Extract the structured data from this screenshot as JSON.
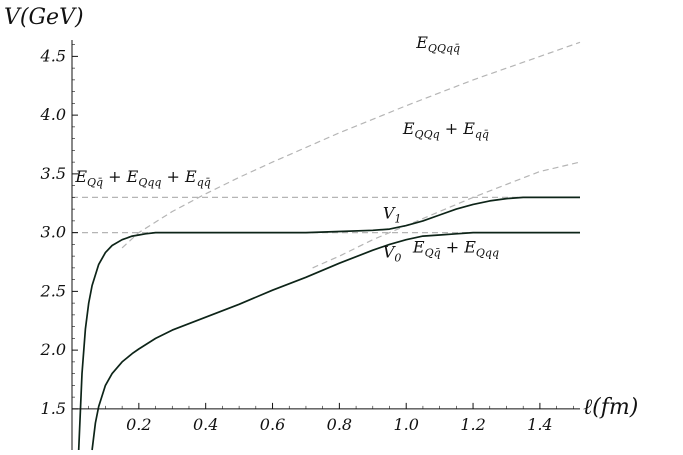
{
  "chart_data": {
    "type": "line",
    "xlabel": "ℓ(fm)",
    "ylabel": "V(GeV)",
    "xlim": [
      0.0,
      1.52
    ],
    "ylim": [
      1.15,
      4.75
    ],
    "x_ticks": [
      {
        "value": 0.2,
        "label": "0.2"
      },
      {
        "value": 0.4,
        "label": "0.4"
      },
      {
        "value": 0.6,
        "label": "0.6"
      },
      {
        "value": 0.8,
        "label": "0.8"
      },
      {
        "value": 1.0,
        "label": "1.0"
      },
      {
        "value": 1.2,
        "label": "1.2"
      },
      {
        "value": 1.4,
        "label": "1.4"
      }
    ],
    "y_ticks": [
      {
        "value": 1.5,
        "label": "1.5"
      },
      {
        "value": 2.0,
        "label": "2.0"
      },
      {
        "value": 2.5,
        "label": "2.5"
      },
      {
        "value": 3.0,
        "label": "3.0"
      },
      {
        "value": 3.5,
        "label": "3.5"
      },
      {
        "value": 4.0,
        "label": "4.0"
      },
      {
        "value": 4.5,
        "label": "4.5"
      }
    ],
    "grid": false,
    "series": [
      {
        "name": "V1",
        "style": "solid",
        "color": "#0d2418",
        "x": [
          0.02,
          0.03,
          0.04,
          0.05,
          0.06,
          0.08,
          0.1,
          0.12,
          0.15,
          0.18,
          0.2,
          0.22,
          0.25,
          0.3,
          0.4,
          0.5,
          0.6,
          0.7,
          0.8,
          0.9,
          0.95,
          1.0,
          1.05,
          1.1,
          1.15,
          1.2,
          1.25,
          1.3,
          1.35,
          1.4,
          1.45,
          1.52
        ],
        "y": [
          1.15,
          1.8,
          2.18,
          2.4,
          2.55,
          2.73,
          2.83,
          2.89,
          2.94,
          2.97,
          2.98,
          2.99,
          3.0,
          3.0,
          3.0,
          3.0,
          3.0,
          3.0,
          3.01,
          3.02,
          3.03,
          3.06,
          3.1,
          3.15,
          3.2,
          3.24,
          3.27,
          3.29,
          3.3,
          3.3,
          3.3,
          3.3
        ]
      },
      {
        "name": "V0",
        "style": "solid",
        "color": "#0d2418",
        "x": [
          0.06,
          0.07,
          0.08,
          0.1,
          0.12,
          0.15,
          0.18,
          0.2,
          0.25,
          0.3,
          0.4,
          0.5,
          0.6,
          0.7,
          0.8,
          0.9,
          0.95,
          1.0,
          1.05,
          1.1,
          1.15,
          1.2,
          1.3,
          1.4,
          1.52
        ],
        "y": [
          1.15,
          1.38,
          1.52,
          1.7,
          1.8,
          1.9,
          1.97,
          2.01,
          2.1,
          2.17,
          2.28,
          2.39,
          2.51,
          2.62,
          2.74,
          2.85,
          2.9,
          2.94,
          2.97,
          2.98,
          2.99,
          3.0,
          3.0,
          3.0,
          3.0
        ]
      },
      {
        "name": "E_QQqq̄",
        "style": "dashed",
        "color": "#b5b5b5",
        "x": [
          0.15,
          0.2,
          0.3,
          0.4,
          0.5,
          0.6,
          0.8,
          1.0,
          1.2,
          1.4,
          1.52
        ],
        "y": [
          2.87,
          3.0,
          3.18,
          3.33,
          3.47,
          3.6,
          3.85,
          4.08,
          4.3,
          4.5,
          4.62
        ]
      },
      {
        "name": "E_QQq + E_qq̄",
        "style": "dashed",
        "color": "#b5b5b5",
        "x": [
          0.72,
          0.8,
          0.9,
          1.0,
          1.1,
          1.2,
          1.3,
          1.4,
          1.52
        ],
        "y": [
          2.7,
          2.8,
          2.94,
          3.06,
          3.18,
          3.3,
          3.41,
          3.52,
          3.6
        ]
      },
      {
        "name": "E_Qq̄ + E_Qqq + E_qq̄",
        "style": "dashed-hline",
        "color": "#b5b5b5",
        "y": 3.3
      },
      {
        "name": "E_Qq̄ + E_Qqq",
        "style": "dashed-hline",
        "color": "#b5b5b5",
        "y": 3.0
      }
    ],
    "annotations": [
      {
        "main": "V",
        "sub": "1",
        "post": "",
        "x": 0.93,
        "y": 3.12
      },
      {
        "main": "V",
        "sub": "0",
        "post": "",
        "x": 0.93,
        "y": 2.79
      },
      {
        "main": "E",
        "sub": "QQqq̄",
        "post": "",
        "x": 1.03,
        "y": 4.57
      },
      {
        "main": "E",
        "sub": "QQq",
        "post": " + E",
        "sub2": "qq̄",
        "x": 0.99,
        "y": 3.84
      },
      {
        "main": "E",
        "sub": "Qq̄",
        "post": " + E",
        "sub2": "Qqq",
        "post2": " + E",
        "sub3": "qq̄",
        "x": 0.01,
        "y": 3.43
      },
      {
        "main": "E",
        "sub": "Qq̄",
        "post": " + E",
        "sub2": "Qqq",
        "x": 1.02,
        "y": 2.83
      }
    ]
  }
}
